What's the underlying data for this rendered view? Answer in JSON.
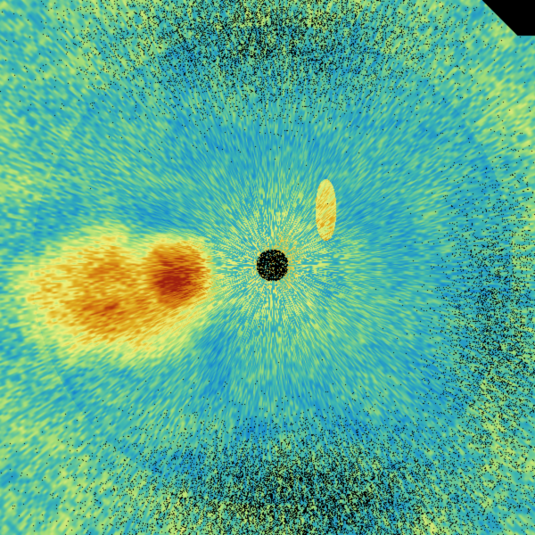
{
  "image": {
    "kind": "radar-reflectivity-sweep",
    "palette": {
      "no_data": "#000000",
      "low": "#0a5fb4",
      "mid_low": "#1a8fd0",
      "mid": "#3fb8b0",
      "mid_high": "#9fdc78",
      "high": "#eef07a",
      "very_high": "#e0b020",
      "peak": "#d07010",
      "extreme": "#a02010"
    }
  }
}
